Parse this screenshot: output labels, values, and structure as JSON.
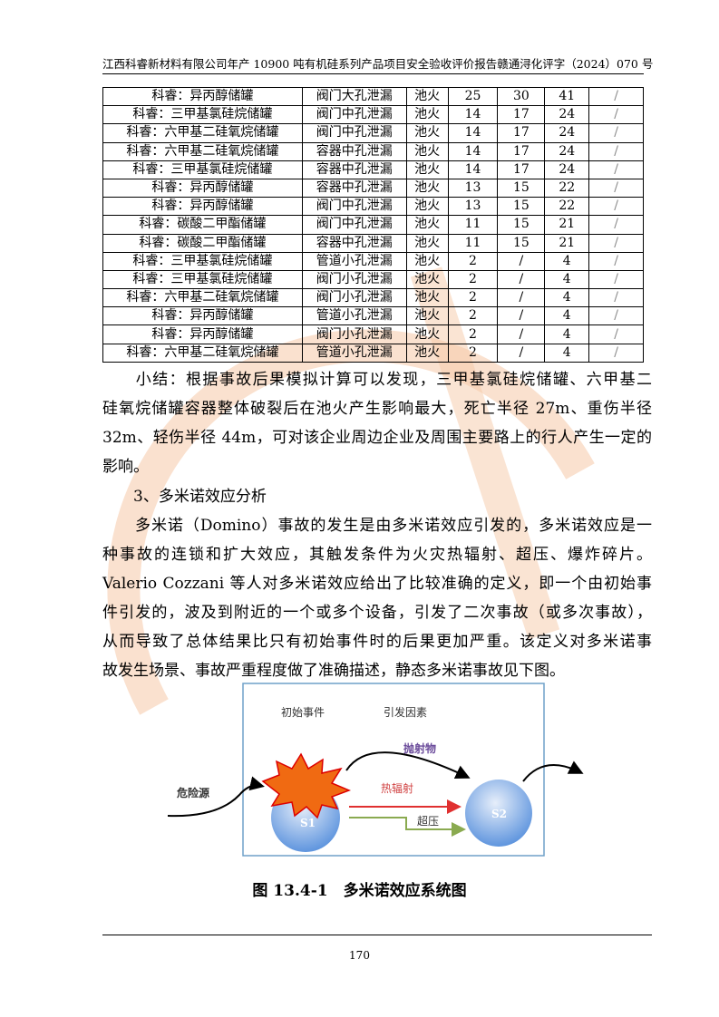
{
  "header": {
    "left": "江西科睿新材料有限公司年产 10900 吨有机硅系列产品项目安全验收评价报告",
    "right": "赣通浔化评字（2024）070 号"
  },
  "table": {
    "rows": [
      [
        "科睿：异丙醇储罐",
        "阀门大孔泄漏",
        "池火",
        "25",
        "30",
        "41",
        "/"
      ],
      [
        "科睿：三甲基氯硅烷储罐",
        "阀门中孔泄漏",
        "池火",
        "14",
        "17",
        "24",
        "/"
      ],
      [
        "科睿：六甲基二硅氧烷储罐",
        "阀门中孔泄漏",
        "池火",
        "14",
        "17",
        "24",
        "/"
      ],
      [
        "科睿：六甲基二硅氧烷储罐",
        "容器中孔泄漏",
        "池火",
        "14",
        "17",
        "24",
        "/"
      ],
      [
        "科睿：三甲基氯硅烷储罐",
        "容器中孔泄漏",
        "池火",
        "14",
        "17",
        "24",
        "/"
      ],
      [
        "科睿：异丙醇储罐",
        "容器中孔泄漏",
        "池火",
        "13",
        "15",
        "22",
        "/"
      ],
      [
        "科睿：异丙醇储罐",
        "阀门中孔泄漏",
        "池火",
        "13",
        "15",
        "22",
        "/"
      ],
      [
        "科睿：碳酸二甲酯储罐",
        "阀门中孔泄漏",
        "池火",
        "11",
        "15",
        "21",
        "/"
      ],
      [
        "科睿：碳酸二甲酯储罐",
        "容器中孔泄漏",
        "池火",
        "11",
        "15",
        "21",
        "/"
      ],
      [
        "科睿：三甲基氯硅烷储罐",
        "管道小孔泄漏",
        "池火",
        "2",
        "/",
        "4",
        "/"
      ],
      [
        "科睿：三甲基氯硅烷储罐",
        "阀门小孔泄漏",
        "池火",
        "2",
        "/",
        "4",
        "/"
      ],
      [
        "科睿：六甲基二硅氧烷储罐",
        "阀门小孔泄漏",
        "池火",
        "2",
        "/",
        "4",
        "/"
      ],
      [
        "科睿：异丙醇储罐",
        "管道小孔泄漏",
        "池火",
        "2",
        "/",
        "4",
        "/"
      ],
      [
        "科睿：异丙醇储罐",
        "阀门小孔泄漏",
        "池火",
        "2",
        "/",
        "4",
        "/"
      ],
      [
        "科睿：六甲基二硅氧烷储罐",
        "管道小孔泄漏",
        "池火",
        "2",
        "/",
        "4",
        "/"
      ]
    ]
  },
  "body": {
    "lines": [
      "　　小结：根据事故后果模拟计算可以发现，三甲基氯硅烷储罐、六甲基二",
      "硅氧烷储罐容器整体破裂后在池火产生影响最大，死亡半径 27m、重伤半径",
      "32m、轻伤半径 44m，可对该企业周边企业及周围主要路上的行人产生一定的",
      "影响。",
      "　　3、多米诺效应分析",
      "　　多米诺（Domino）事故的发生是由多米诺效应引发的，多米诺效应是一",
      "种事故的连锁和扩大效应，其触发条件为火灾热辐射、超压、爆炸碎片。",
      "Valerio Cozzani 等人对多米诺效应给出了比较准确的定义，即一个由初始事",
      "件引发的，波及到附近的一个或多个设备，引发了二次事故（或多次事故），",
      "从而导致了总体结果比只有初始事件时的后果更加严重。该定义对多米诺事",
      "故发生场景、事故严重程度做了准确描述，静态多米诺事故见下图。"
    ]
  },
  "figure": {
    "labels": {
      "initial": "初始事件",
      "factor": "引发因素",
      "projectile": "抛射物",
      "hazard": "危险源",
      "heat": "热辐射",
      "overpressure": "超压",
      "s1": "S1",
      "s2": "S2"
    },
    "caption": "图 13.4-1　多米诺效应系统图"
  },
  "page_number": "170",
  "colors": {
    "explosion": "#f06a12",
    "heat_arrow": "#e03030",
    "pressure_arrow": "#8aaa50",
    "sphere": "#6c9fe0"
  }
}
